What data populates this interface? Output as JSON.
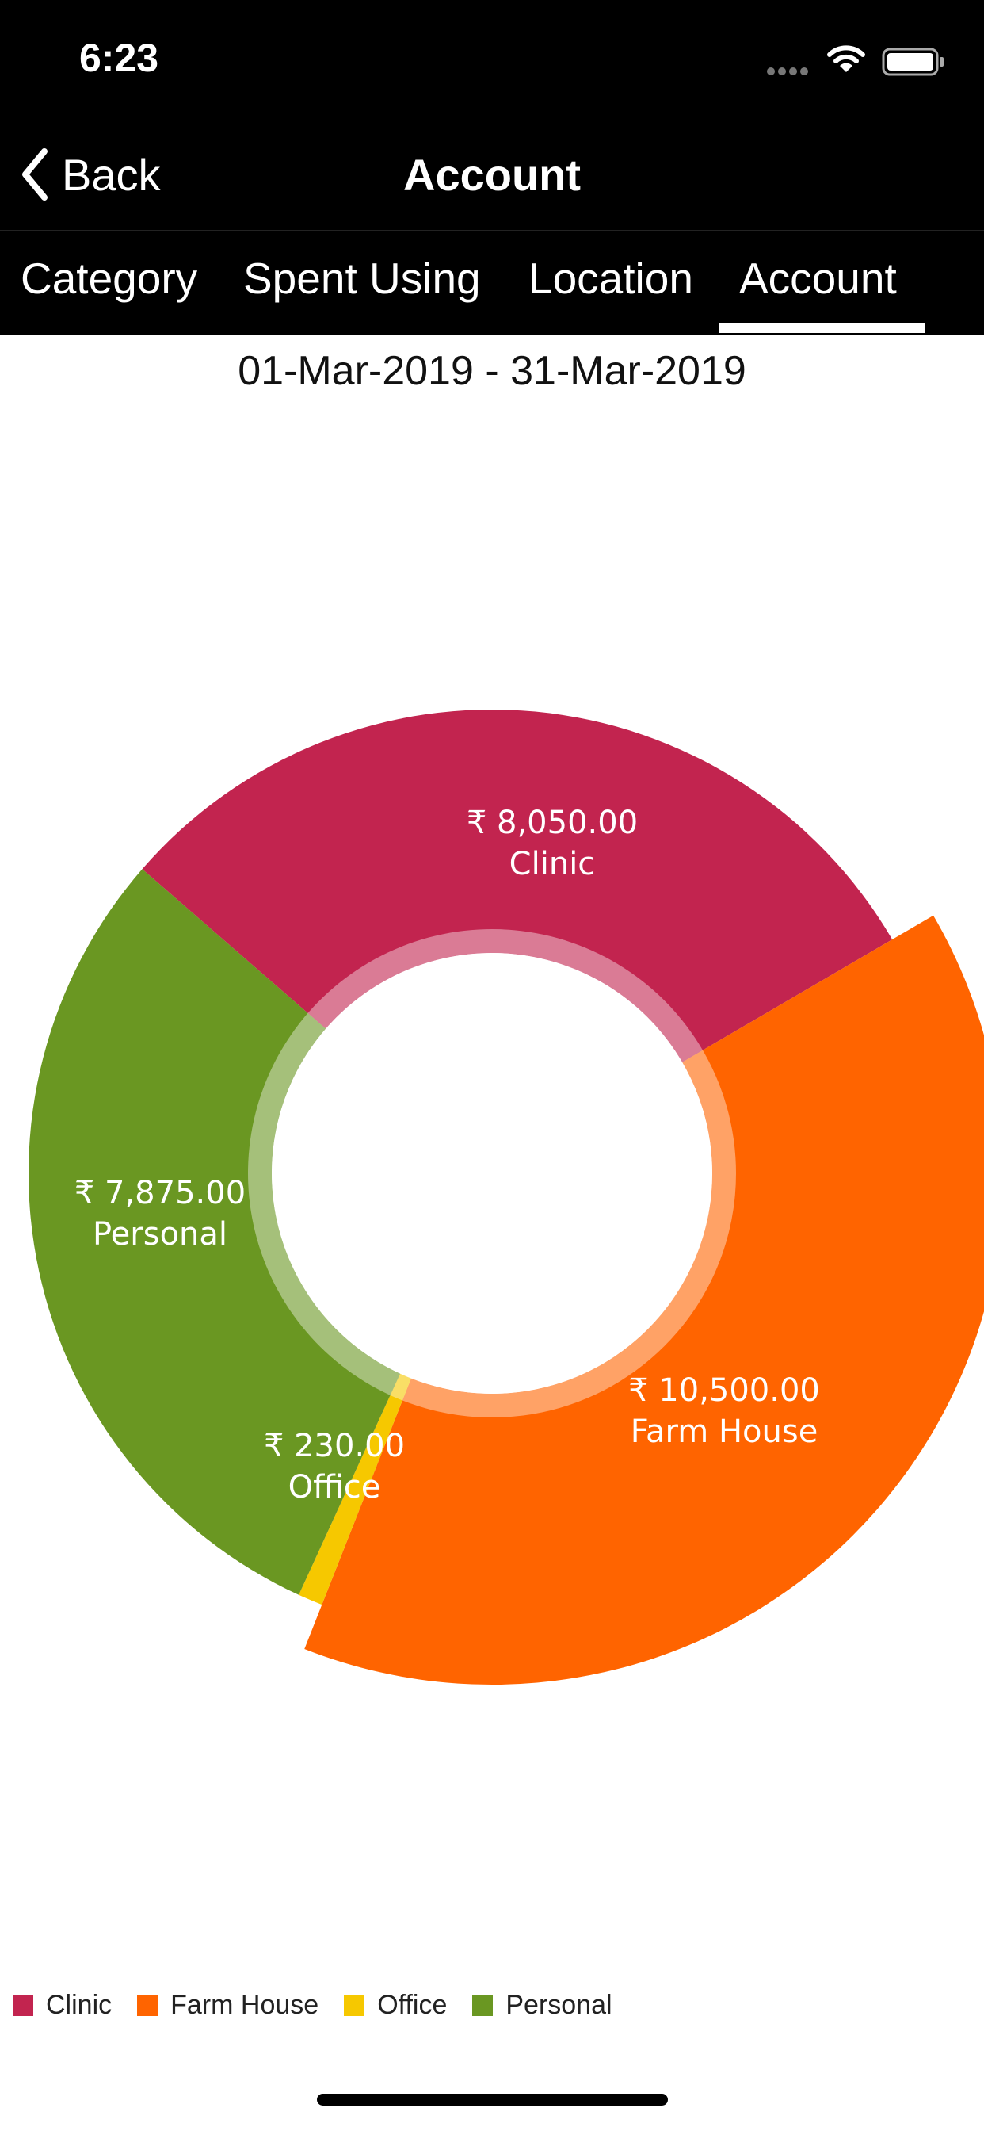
{
  "status_bar": {
    "time": "6:23",
    "icons": [
      "signal-dots-icon",
      "wifi-icon",
      "battery-icon"
    ]
  },
  "nav": {
    "back_label": "Back",
    "back_icon": "chevron-left-icon",
    "title": "Account"
  },
  "tabs": [
    {
      "label": "Category",
      "selected": false
    },
    {
      "label": "Spent Using",
      "selected": false
    },
    {
      "label": "Location",
      "selected": false
    },
    {
      "label": "Account",
      "selected": true
    }
  ],
  "date_range": "01-Mar-2019 - 31-Mar-2019",
  "colors": {
    "clinic": "#C2244F",
    "farm_house": "#FF6400",
    "office": "#F6C800",
    "personal": "#6A9722",
    "header_bg": "#000000"
  },
  "chart_data": {
    "type": "pie",
    "style": "donut",
    "categories": [
      "Clinic",
      "Farm House",
      "Office",
      "Personal"
    ],
    "values": [
      8050.0,
      10500.0,
      230.0,
      7875.0
    ],
    "value_labels": [
      "₹ 8,050.00",
      "₹ 10,500.00",
      "₹ 230.00",
      "₹ 7,875.00"
    ],
    "colors": [
      "#C2244F",
      "#FF6400",
      "#F6C800",
      "#6A9722"
    ],
    "selected_slice": "Farm House",
    "legend_position": "bottom-left"
  },
  "legend": [
    {
      "label": "Clinic",
      "color": "#C2244F"
    },
    {
      "label": "Farm House",
      "color": "#FF6400"
    },
    {
      "label": "Office",
      "color": "#F6C800"
    },
    {
      "label": "Personal",
      "color": "#6A9722"
    }
  ]
}
